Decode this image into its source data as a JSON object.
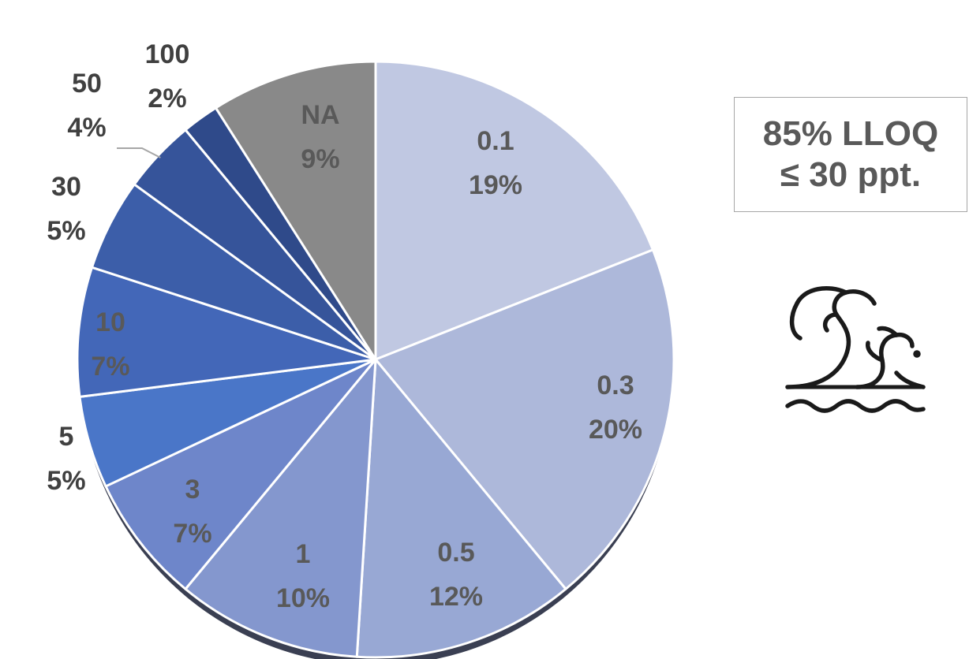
{
  "chart_data": {
    "type": "pie",
    "slices": [
      {
        "label": "0.1",
        "pct_text": "19%",
        "value": 19,
        "color": "#c0c8e2"
      },
      {
        "label": "0.3",
        "pct_text": "20%",
        "value": 20,
        "color": "#adb8da"
      },
      {
        "label": "0.5",
        "pct_text": "12%",
        "value": 12,
        "color": "#98a8d4"
      },
      {
        "label": "1",
        "pct_text": "10%",
        "value": 10,
        "color": "#8497ce"
      },
      {
        "label": "3",
        "pct_text": "7%",
        "value": 7,
        "color": "#6e86ca"
      },
      {
        "label": "5",
        "pct_text": "5%",
        "value": 5,
        "color": "#4a76c8"
      },
      {
        "label": "10",
        "pct_text": "7%",
        "value": 7,
        "color": "#4367b8"
      },
      {
        "label": "30",
        "pct_text": "5%",
        "value": 5,
        "color": "#3c5ea9"
      },
      {
        "label": "50",
        "pct_text": "4%",
        "value": 4,
        "color": "#36549a"
      },
      {
        "label": "100",
        "pct_text": "2%",
        "value": 2,
        "color": "#2f4a8a"
      },
      {
        "label": "NA",
        "pct_text": "9%",
        "value": 9,
        "color": "#898989"
      }
    ],
    "label_colors": {
      "inside": "#595959",
      "outside": "#404040"
    },
    "edge_color": "#ffffff",
    "shadow_color": "#3a3f52"
  },
  "callout": {
    "line1": "85% LLOQ",
    "line2": "≤ 30 ppt."
  },
  "icon": {
    "name": "ocean-waves-icon",
    "color": "#1a1a1a"
  }
}
